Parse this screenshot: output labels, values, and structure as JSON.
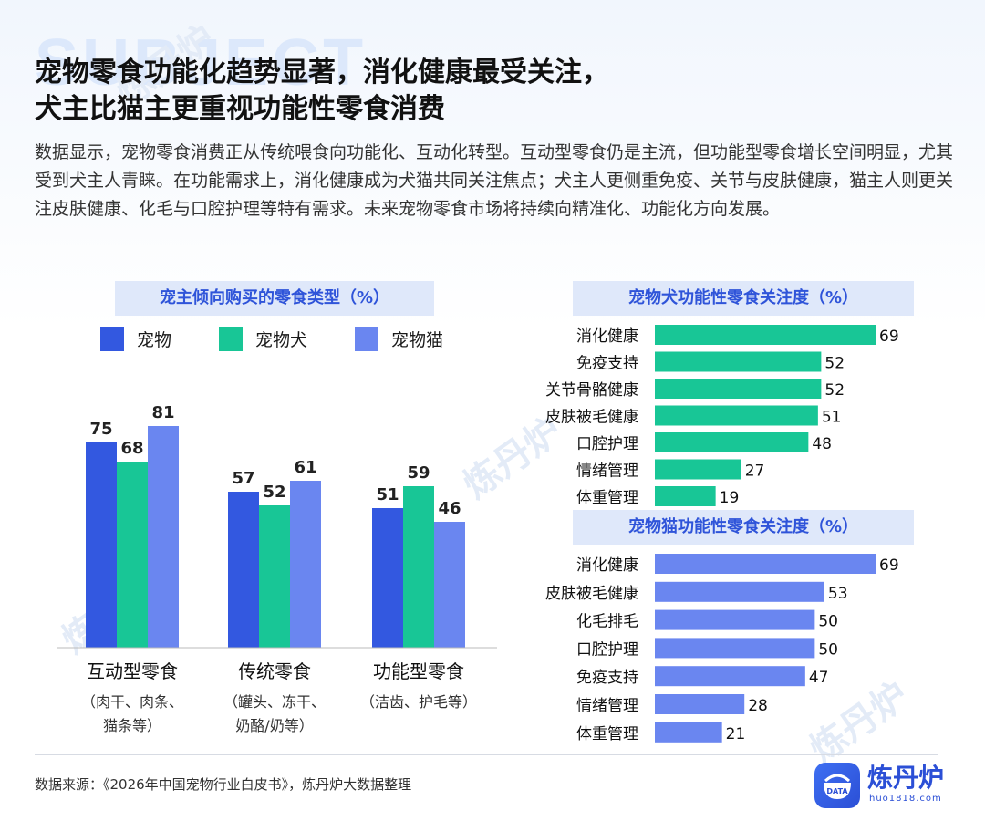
{
  "background_word": "SUBJECT",
  "watermark_text": "炼丹炉",
  "title_line1": "宠物零食功能化趋势显著，消化健康最受关注，",
  "title_line2": "犬主比猫主更重视功能性零食消费",
  "description": "数据显示，宠物零食消费正从传统喂食向功能化、互动化转型。互动型零食仍是主流，但功能型零食增长空间明显，尤其受到犬主人青睐。在功能需求上，消化健康成为犬猫共同关注焦点；犬主人更侧重免疫、关节与皮肤健康，猫主人则更关注皮肤健康、化毛与口腔护理等特有需求。未来宠物零食市场将持续向精准化、功能化方向发展。",
  "colors": {
    "pet": "#3358e0",
    "dog": "#18c696",
    "cat": "#6a86f0",
    "panel_bg": "#dfe8fa",
    "panel_text": "#2f54d9"
  },
  "chart_data": [
    {
      "type": "bar",
      "title": "宠主倾向购买的零食类型（%）",
      "categories": [
        "互动型零食",
        "传统零食",
        "功能型零食"
      ],
      "category_notes": [
        [
          "（肉干、肉条、",
          "猫条等）"
        ],
        [
          "（罐头、冻干、",
          "奶酪/奶等）"
        ],
        [
          "（洁齿、护毛等）"
        ]
      ],
      "series": [
        {
          "name": "宠物",
          "values": [
            75,
            57,
            51
          ]
        },
        {
          "name": "宠物犬",
          "values": [
            68,
            52,
            59
          ]
        },
        {
          "name": "宠物猫",
          "values": [
            81,
            61,
            46
          ]
        }
      ],
      "ylim": [
        0,
        100
      ],
      "grid": false,
      "legend": "top"
    },
    {
      "type": "bar",
      "orientation": "horizontal",
      "title": "宠物犬功能性零食关注度（%）",
      "categories": [
        "消化健康",
        "免疫支持",
        "关节骨骼健康",
        "皮肤被毛健康",
        "口腔护理",
        "情绪管理",
        "体重管理"
      ],
      "values": [
        69,
        52,
        52,
        51,
        48,
        27,
        19
      ],
      "xlim": [
        0,
        69
      ],
      "grid": false
    },
    {
      "type": "bar",
      "orientation": "horizontal",
      "title": "宠物猫功能性零食关注度（%）",
      "categories": [
        "消化健康",
        "皮肤被毛健康",
        "化毛排毛",
        "口腔护理",
        "免疫支持",
        "情绪管理",
        "体重管理"
      ],
      "values": [
        69,
        53,
        50,
        50,
        47,
        28,
        21
      ],
      "xlim": [
        0,
        69
      ],
      "grid": false
    }
  ],
  "source": "数据来源：《2026年中国宠物行业白皮书》，炼丹炉大数据整理",
  "logo": {
    "name": "炼丹炉",
    "url": "huo1818.com",
    "badge": "DATA"
  }
}
